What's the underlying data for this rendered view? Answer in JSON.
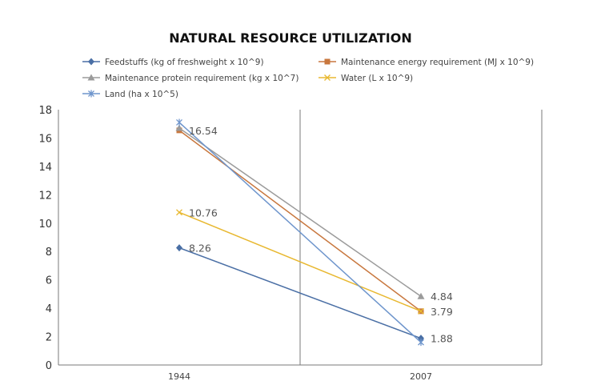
{
  "chart_data": {
    "type": "line",
    "title": "NATURAL RESOURCE UTILIZATION",
    "categories": [
      "1944",
      "2007"
    ],
    "ylim": [
      0,
      18
    ],
    "yticks": [
      0,
      2,
      4,
      6,
      8,
      10,
      12,
      14,
      16,
      18
    ],
    "grid": false,
    "legend_position": "top",
    "series": [
      {
        "name": "Feedstuffs (kg of freshweight x 10^9)",
        "values": [
          8.26,
          1.88
        ],
        "color": "#4a6fa5",
        "marker": "diamond"
      },
      {
        "name": "Maintenance energy requirement (MJ x 10^9)",
        "values": [
          16.54,
          3.79
        ],
        "color": "#c8773e",
        "marker": "square"
      },
      {
        "name": "Maintenance protein requirement (kg x 10^7)",
        "values": [
          16.7,
          4.84
        ],
        "color": "#9b9b9b",
        "marker": "triangle"
      },
      {
        "name": "Water (L x 10^9)",
        "values": [
          10.76,
          3.79
        ],
        "color": "#e8b830",
        "marker": "x"
      },
      {
        "name": "Land (ha x 10^5)",
        "values": [
          17.1,
          1.6
        ],
        "color": "#6e95cc",
        "marker": "star"
      }
    ],
    "data_labels": [
      {
        "category": "1944",
        "value": 16.54,
        "text": "16.54"
      },
      {
        "category": "1944",
        "value": 10.76,
        "text": "10.76"
      },
      {
        "category": "1944",
        "value": 8.26,
        "text": "8.26"
      },
      {
        "category": "2007",
        "value": 4.84,
        "text": "4.84"
      },
      {
        "category": "2007",
        "value": 3.79,
        "text": "3.79"
      },
      {
        "category": "2007",
        "value": 1.88,
        "text": "1.88"
      }
    ]
  }
}
